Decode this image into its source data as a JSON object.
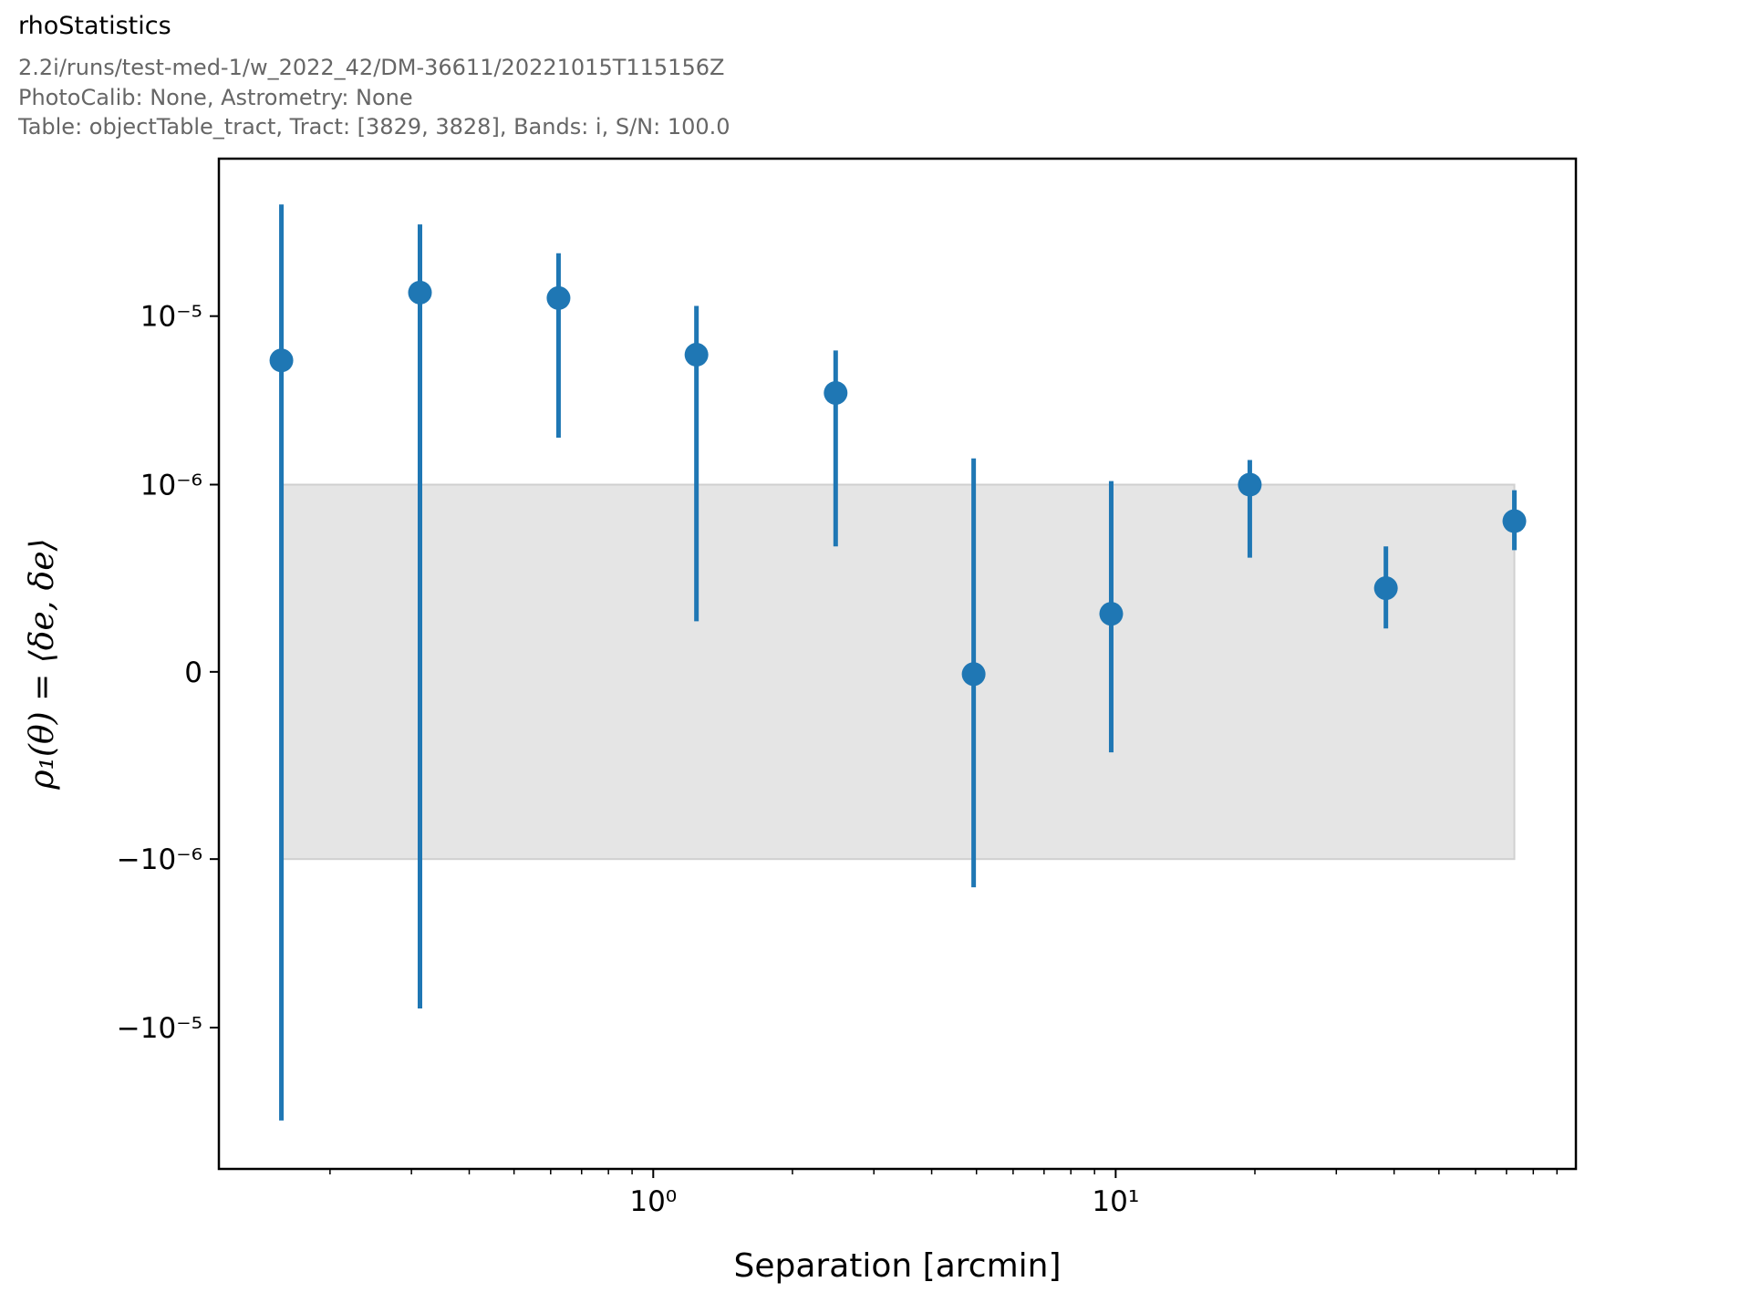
{
  "header": {
    "title": "rhoStatistics",
    "subtitle_lines": [
      "2.2i/runs/test-med-1/w_2022_42/DM-36611/20221015T115156Z",
      "PhotoCalib: None, Astrometry: None",
      "Table: objectTable_tract, Tract: [3829, 3828], Bands: i, S/N: 100.0"
    ]
  },
  "chart_data": {
    "type": "scatter",
    "subtype": "errorbar",
    "xlabel": "Separation [arcmin]",
    "ylabel": "ρ₁(θ) = ⟨δe, δe⟩",
    "xscale": "log",
    "yscale": "symlog",
    "linthresh": 1e-06,
    "xlim": [
      0.115,
      98.9
    ],
    "ylim": [
      -6.9e-05,
      8.6e-05
    ],
    "grid": false,
    "color": "#1f77b4",
    "band_color": "#e5e5e5",
    "band": {
      "y": [
        -1e-06,
        1e-06
      ]
    },
    "x_ticks": [
      {
        "value": 1,
        "label": "10⁰"
      },
      {
        "value": 10,
        "label": "10¹"
      }
    ],
    "y_ticks": [
      {
        "value": 1e-05,
        "label": "10⁻⁵"
      },
      {
        "value": 1e-06,
        "label": "10⁻⁶"
      },
      {
        "value": 0,
        "label": "0"
      },
      {
        "value": -1e-06,
        "label": "−10⁻⁶"
      },
      {
        "value": -1e-05,
        "label": "−10⁻⁵"
      }
    ],
    "points": [
      {
        "x": 0.157,
        "y": 5.46e-06,
        "ylo": -3.56e-05,
        "yhi": 4.6e-05
      },
      {
        "x": 0.313,
        "y": 1.38e-05,
        "ylo": -7.7e-06,
        "yhi": 3.5e-05
      },
      {
        "x": 0.624,
        "y": 1.28e-05,
        "ylo": 1.9e-06,
        "yhi": 2.36e-05
      },
      {
        "x": 1.24,
        "y": 5.9e-06,
        "ylo": 2.7e-07,
        "yhi": 1.15e-05
      },
      {
        "x": 2.48,
        "y": 3.5e-06,
        "ylo": 6.7e-07,
        "yhi": 6.25e-06
      },
      {
        "x": 4.93,
        "y": -1.2e-08,
        "ylo": -1.47e-06,
        "yhi": 1.43e-06
      },
      {
        "x": 9.78,
        "y": 3.1e-07,
        "ylo": -4.3e-07,
        "yhi": 1.05e-06
      },
      {
        "x": 19.5,
        "y": 1e-06,
        "ylo": 6.1e-07,
        "yhi": 1.4e-06
      },
      {
        "x": 38.4,
        "y": 4.47e-07,
        "ylo": 2.32e-07,
        "yhi": 6.7e-07
      },
      {
        "x": 72.8,
        "y": 8.05e-07,
        "ylo": 6.5e-07,
        "yhi": 9.7e-07
      }
    ]
  }
}
